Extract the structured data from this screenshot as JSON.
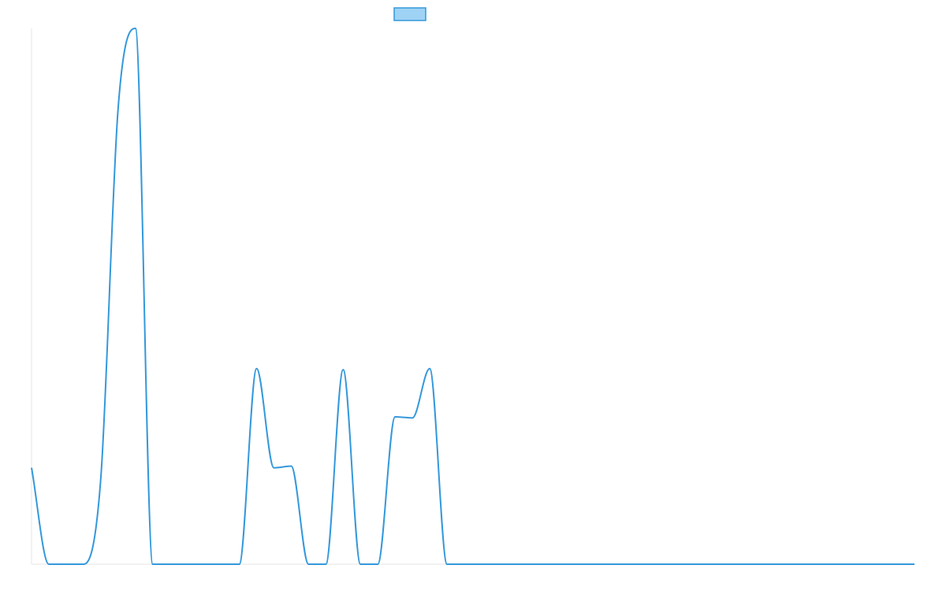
{
  "chart_data": {
    "type": "line",
    "title": "",
    "xlabel": "",
    "ylabel": "",
    "grid": false,
    "legend": {
      "position": "top-center"
    },
    "colors": {
      "series_line": "#3498db",
      "legend_fill": "#9fd3f5",
      "axis": "#e6e6e6"
    },
    "x": [
      0,
      1,
      2,
      3,
      4,
      5,
      6,
      7,
      8,
      9,
      10,
      11,
      12,
      13,
      14,
      15,
      16,
      17,
      18,
      19,
      20,
      21,
      22,
      23,
      24,
      25,
      26,
      27,
      28,
      29,
      30,
      31,
      32,
      33,
      34,
      35,
      36,
      37,
      38,
      39,
      40,
      41,
      42,
      43,
      44,
      45,
      46,
      47,
      48,
      49,
      50,
      51
    ],
    "ylim": [
      0,
      100
    ],
    "series": [
      {
        "values": [
          18,
          0,
          0,
          0,
          16,
          85,
          100,
          0,
          0,
          0,
          0,
          0,
          0,
          36.5,
          18,
          18.3,
          0,
          0,
          36.3,
          0,
          0,
          27.5,
          27.3,
          36.5,
          0,
          0,
          0,
          0,
          0,
          0,
          0,
          0,
          0,
          0,
          0,
          0,
          0,
          0,
          0,
          0,
          0,
          0,
          0,
          0,
          0,
          0,
          0,
          0,
          0,
          0,
          0,
          0
        ]
      }
    ]
  }
}
